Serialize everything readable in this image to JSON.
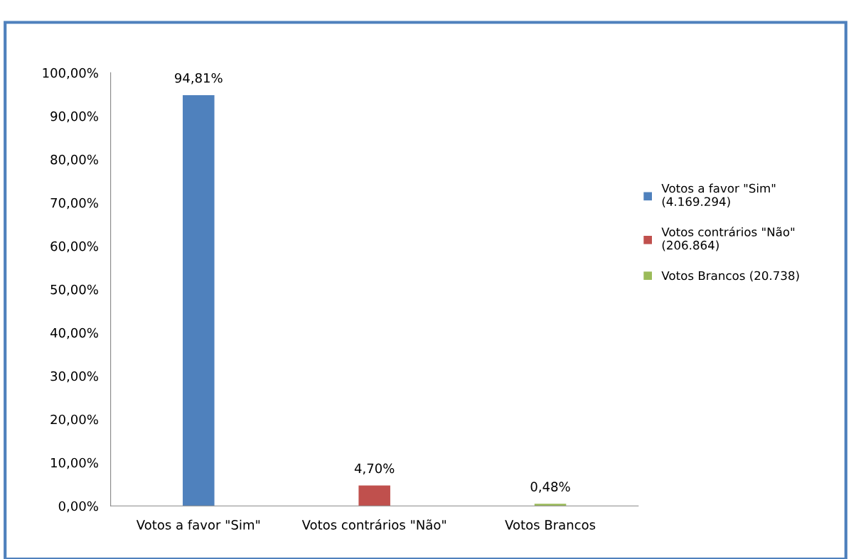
{
  "chart_data": {
    "type": "bar",
    "categories": [
      "Votos a favor \"Sim\"",
      "Votos contrários \"Não\"",
      "Votos Brancos"
    ],
    "series": [
      {
        "name": "Votos a favor \"Sim\" (4.169.294)",
        "color": "#4f81bd",
        "values": [
          94.81,
          null,
          null
        ],
        "value_labels": [
          "94,81%",
          null,
          null
        ]
      },
      {
        "name": "Votos contrários \"Não\" (206.864)",
        "color": "#c0504d",
        "values": [
          null,
          4.7,
          null
        ],
        "value_labels": [
          null,
          "4,70%",
          null
        ]
      },
      {
        "name": "Votos Brancos (20.738)",
        "color": "#9bbb59",
        "values": [
          null,
          null,
          0.48
        ],
        "value_labels": [
          null,
          null,
          "0,48%"
        ]
      }
    ],
    "ylim": [
      0,
      100
    ],
    "yticks": [
      {
        "value": 0,
        "label": "0,00%"
      },
      {
        "value": 10,
        "label": "10,00%"
      },
      {
        "value": 20,
        "label": "20,00%"
      },
      {
        "value": 30,
        "label": "30,00%"
      },
      {
        "value": 40,
        "label": "40,00%"
      },
      {
        "value": 50,
        "label": "50,00%"
      },
      {
        "value": 60,
        "label": "60,00%"
      },
      {
        "value": 70,
        "label": "70,00%"
      },
      {
        "value": 80,
        "label": "80,00%"
      },
      {
        "value": 90,
        "label": "90,00%"
      },
      {
        "value": 100,
        "label": "100,00%"
      }
    ],
    "grid": false,
    "legend": "right"
  }
}
